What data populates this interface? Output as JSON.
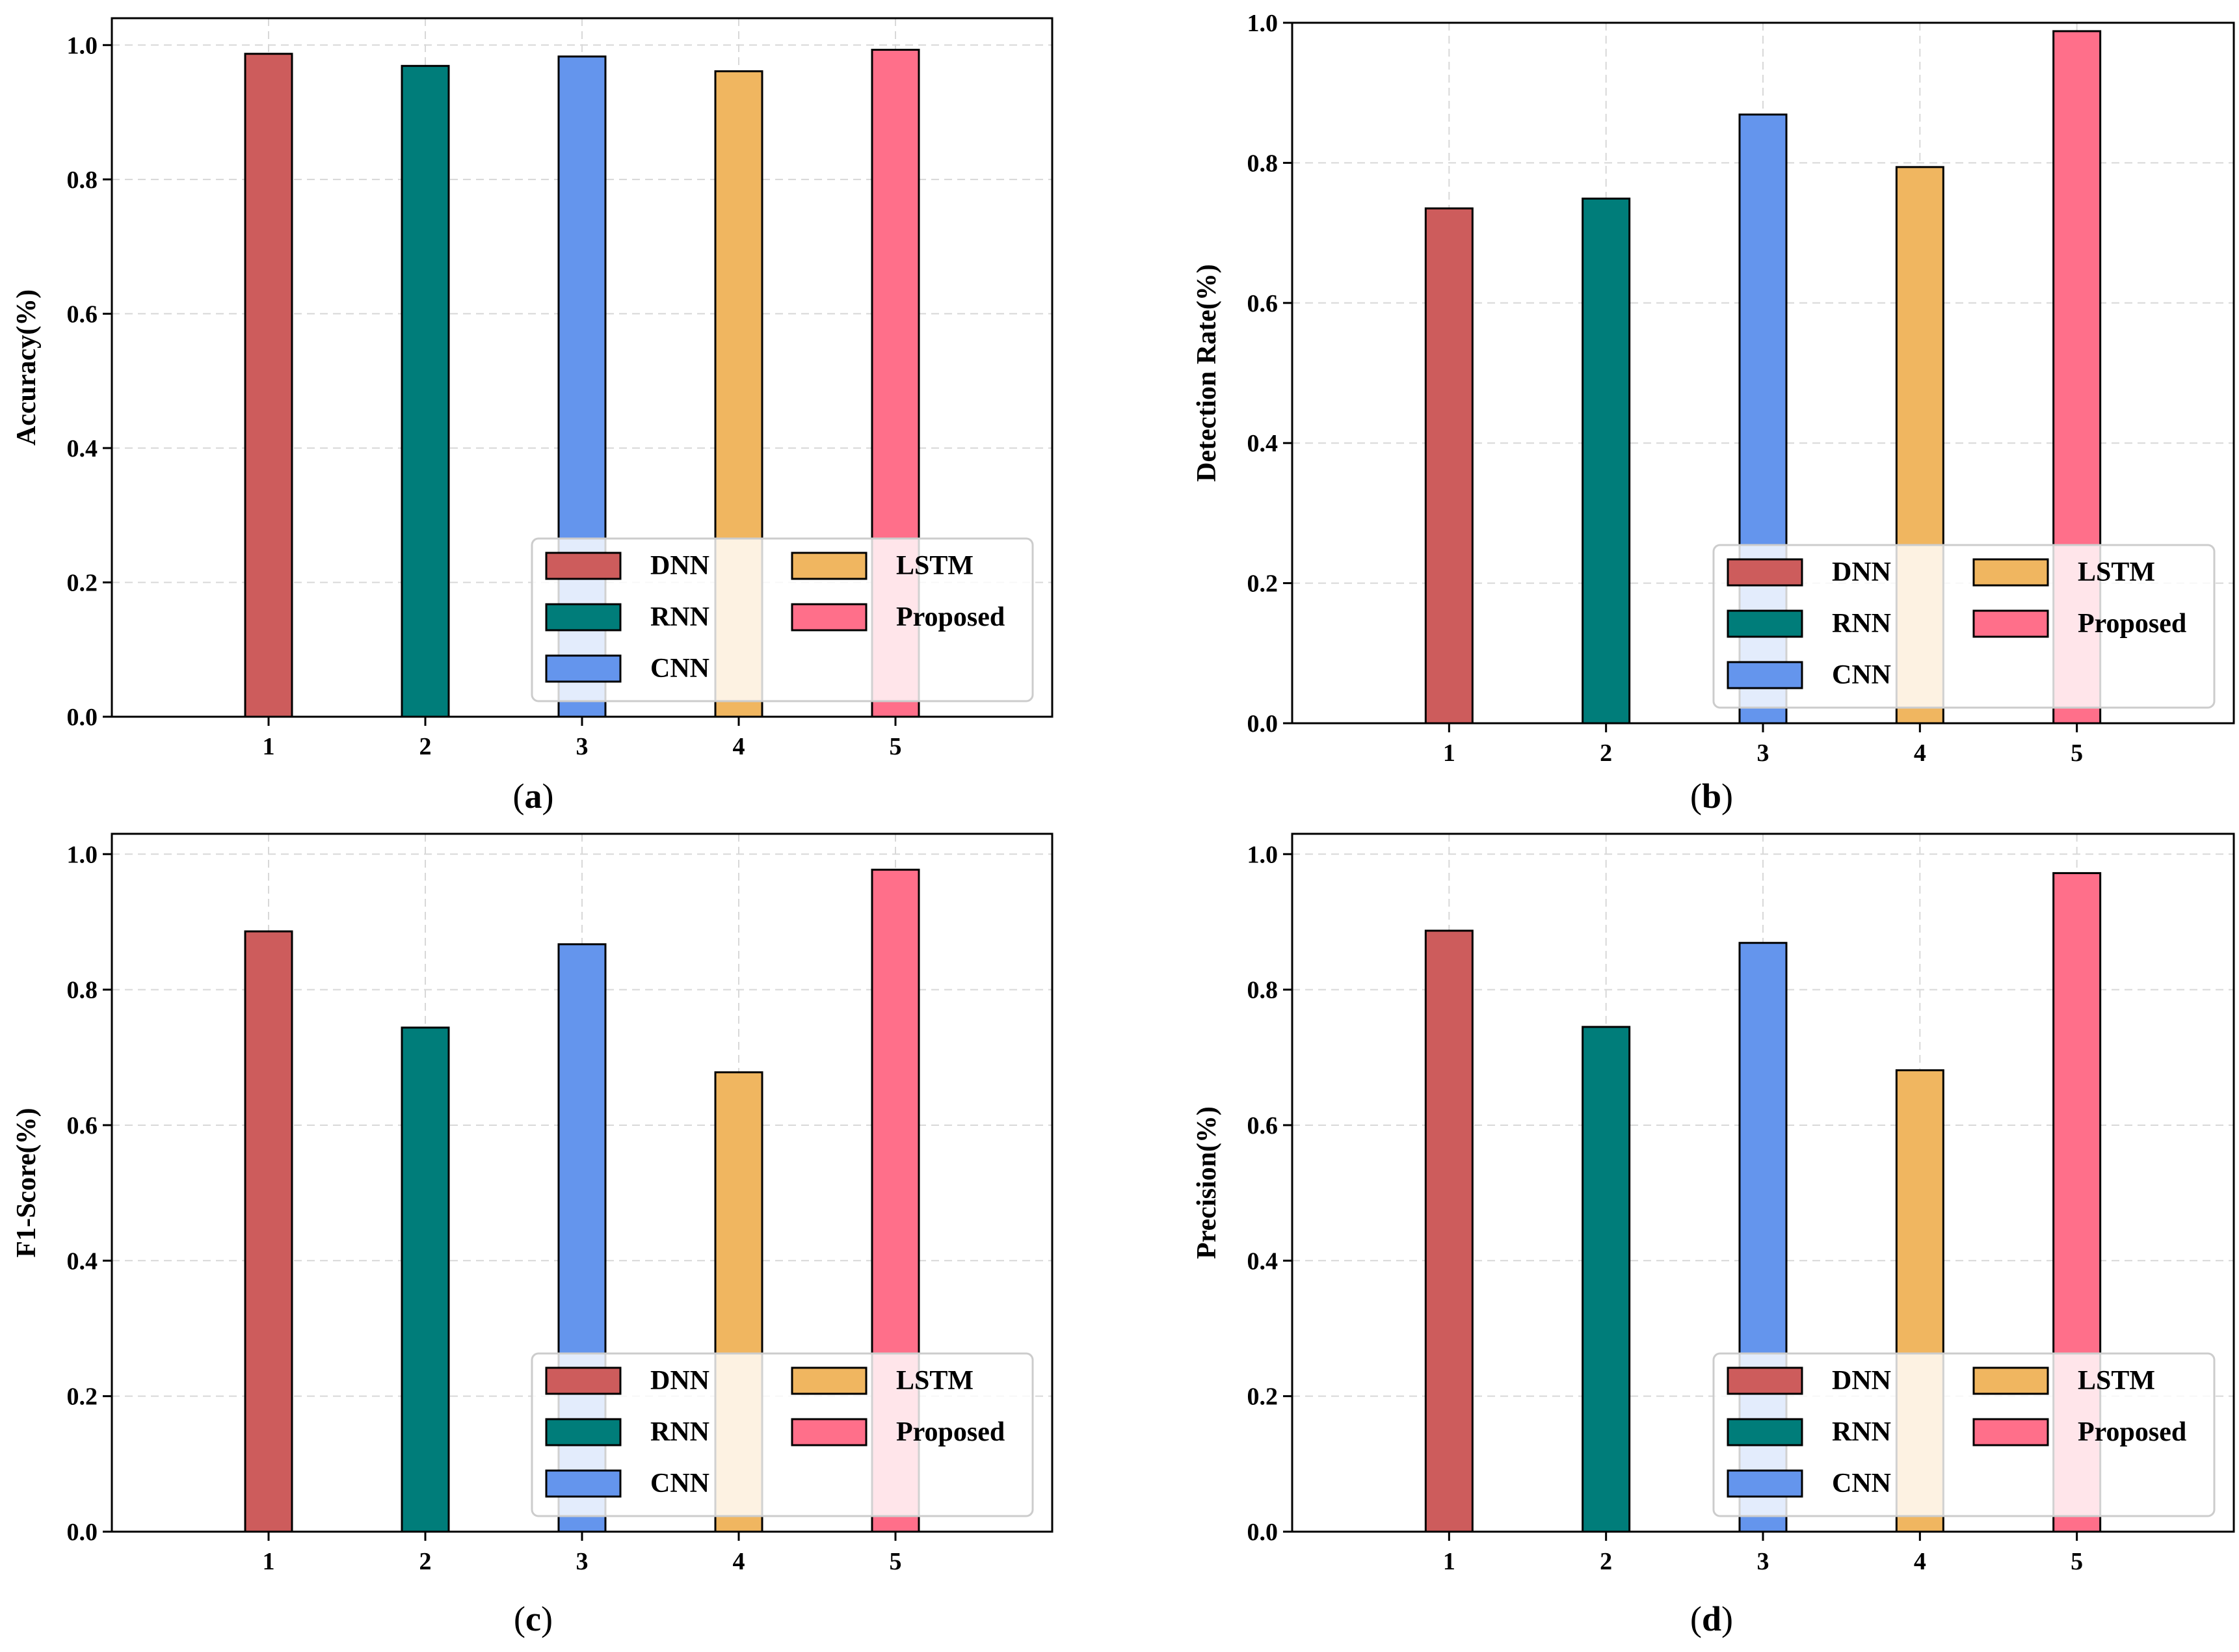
{
  "figure": {
    "legend_labels": [
      "DNN",
      "RNN",
      "CNN",
      "LSTM",
      "Proposed"
    ],
    "colors": {
      "DNN": "#CD5C5C",
      "RNN": "#007D7A",
      "CNN": "#6495ED",
      "LSTM": "#F0B660",
      "Proposed": "#FF6F8A",
      "grid": "#d8d8d8",
      "axis": "#000000"
    }
  },
  "chart_data": [
    {
      "type": "bar",
      "panel": "a",
      "caption_letter": "a",
      "categories": [
        "1",
        "2",
        "3",
        "4",
        "5"
      ],
      "series": [
        {
          "name": "DNN",
          "x": 1,
          "value": 0.987
        },
        {
          "name": "RNN",
          "x": 2,
          "value": 0.969
        },
        {
          "name": "CNN",
          "x": 3,
          "value": 0.983
        },
        {
          "name": "LSTM",
          "x": 4,
          "value": 0.961
        },
        {
          "name": "Proposed",
          "x": 5,
          "value": 0.993
        }
      ],
      "title": "",
      "xlabel": "",
      "ylabel": "Accuracy(%)",
      "ylim": [
        0,
        1.04
      ],
      "yticks": [
        "0.0",
        "0.2",
        "0.4",
        "0.6",
        "0.8",
        "1.0"
      ],
      "grid": true,
      "legend_position": "lower-right"
    },
    {
      "type": "bar",
      "panel": "b",
      "caption_letter": "b",
      "categories": [
        "1",
        "2",
        "3",
        "4",
        "5"
      ],
      "series": [
        {
          "name": "DNN",
          "x": 1,
          "value": 0.735
        },
        {
          "name": "RNN",
          "x": 2,
          "value": 0.749
        },
        {
          "name": "CNN",
          "x": 3,
          "value": 0.869
        },
        {
          "name": "LSTM",
          "x": 4,
          "value": 0.794
        },
        {
          "name": "Proposed",
          "x": 5,
          "value": 0.988
        }
      ],
      "title": "",
      "xlabel": "",
      "ylabel": "Detection Rate(%)",
      "ylim": [
        0,
        1.0
      ],
      "yticks": [
        "0.0",
        "0.2",
        "0.4",
        "0.6",
        "0.8",
        "1.0"
      ],
      "grid": true,
      "legend_position": "lower-right"
    },
    {
      "type": "bar",
      "panel": "c",
      "caption_letter": "c",
      "categories": [
        "1",
        "2",
        "3",
        "4",
        "5"
      ],
      "series": [
        {
          "name": "DNN",
          "x": 1,
          "value": 0.886
        },
        {
          "name": "RNN",
          "x": 2,
          "value": 0.744
        },
        {
          "name": "CNN",
          "x": 3,
          "value": 0.867
        },
        {
          "name": "LSTM",
          "x": 4,
          "value": 0.678
        },
        {
          "name": "Proposed",
          "x": 5,
          "value": 0.977
        }
      ],
      "title": "",
      "xlabel": "",
      "ylabel": "F1-Score(%)",
      "ylim": [
        0,
        1.03
      ],
      "yticks": [
        "0.0",
        "0.2",
        "0.4",
        "0.6",
        "0.8",
        "1.0"
      ],
      "grid": true,
      "legend_position": "lower-right"
    },
    {
      "type": "bar",
      "panel": "d",
      "caption_letter": "d",
      "categories": [
        "1",
        "2",
        "3",
        "4",
        "5"
      ],
      "series": [
        {
          "name": "DNN",
          "x": 1,
          "value": 0.887
        },
        {
          "name": "RNN",
          "x": 2,
          "value": 0.745
        },
        {
          "name": "CNN",
          "x": 3,
          "value": 0.869
        },
        {
          "name": "LSTM",
          "x": 4,
          "value": 0.681
        },
        {
          "name": "Proposed",
          "x": 5,
          "value": 0.972
        }
      ],
      "title": "",
      "xlabel": "",
      "ylabel": "Precision(%)",
      "ylim": [
        0,
        1.03
      ],
      "yticks": [
        "0.0",
        "0.2",
        "0.4",
        "0.6",
        "0.8",
        "1.0"
      ],
      "grid": true,
      "legend_position": "lower-right"
    }
  ]
}
